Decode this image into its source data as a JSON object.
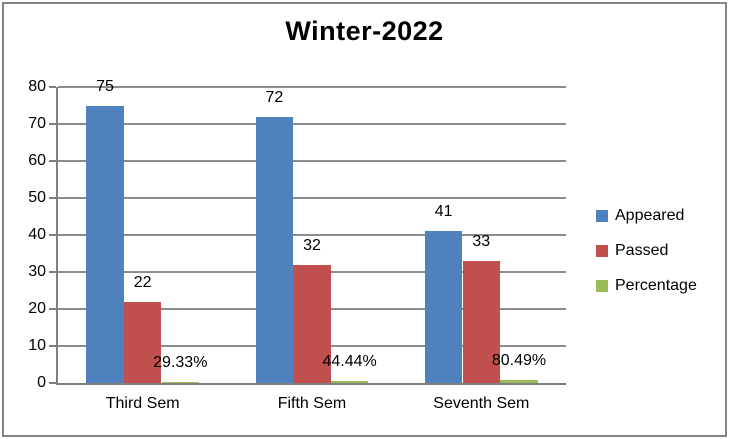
{
  "chart_data": {
    "type": "bar",
    "title": "Winter-2022",
    "categories": [
      "Third Sem",
      "Fifth Sem",
      "Seventh Sem"
    ],
    "series": [
      {
        "name": "Appeared",
        "color": "#4F81BD",
        "values": [
          75,
          72,
          41
        ],
        "labels": [
          "75",
          "72",
          "41"
        ]
      },
      {
        "name": "Passed",
        "color": "#C0504D",
        "values": [
          22,
          32,
          33
        ],
        "labels": [
          "22",
          "32",
          "33"
        ]
      },
      {
        "name": "Percentage",
        "color": "#9BBB59",
        "values": [
          29.33,
          44.44,
          80.49
        ],
        "unit": "%",
        "plotted_as_fraction_of_100": true,
        "labels": [
          "29.33%",
          "44.44%",
          "80.49%"
        ]
      }
    ],
    "xlabel": "",
    "ylabel": "",
    "ylim": [
      0,
      80
    ],
    "yticks": [
      0,
      10,
      20,
      30,
      40,
      50,
      60,
      70,
      80
    ],
    "grid": true,
    "legend_position": "right",
    "colors": {
      "gridline": "#8C8C8C",
      "axis": "#7F7F7F",
      "text": "#000000",
      "frame_border": "#848484"
    }
  }
}
